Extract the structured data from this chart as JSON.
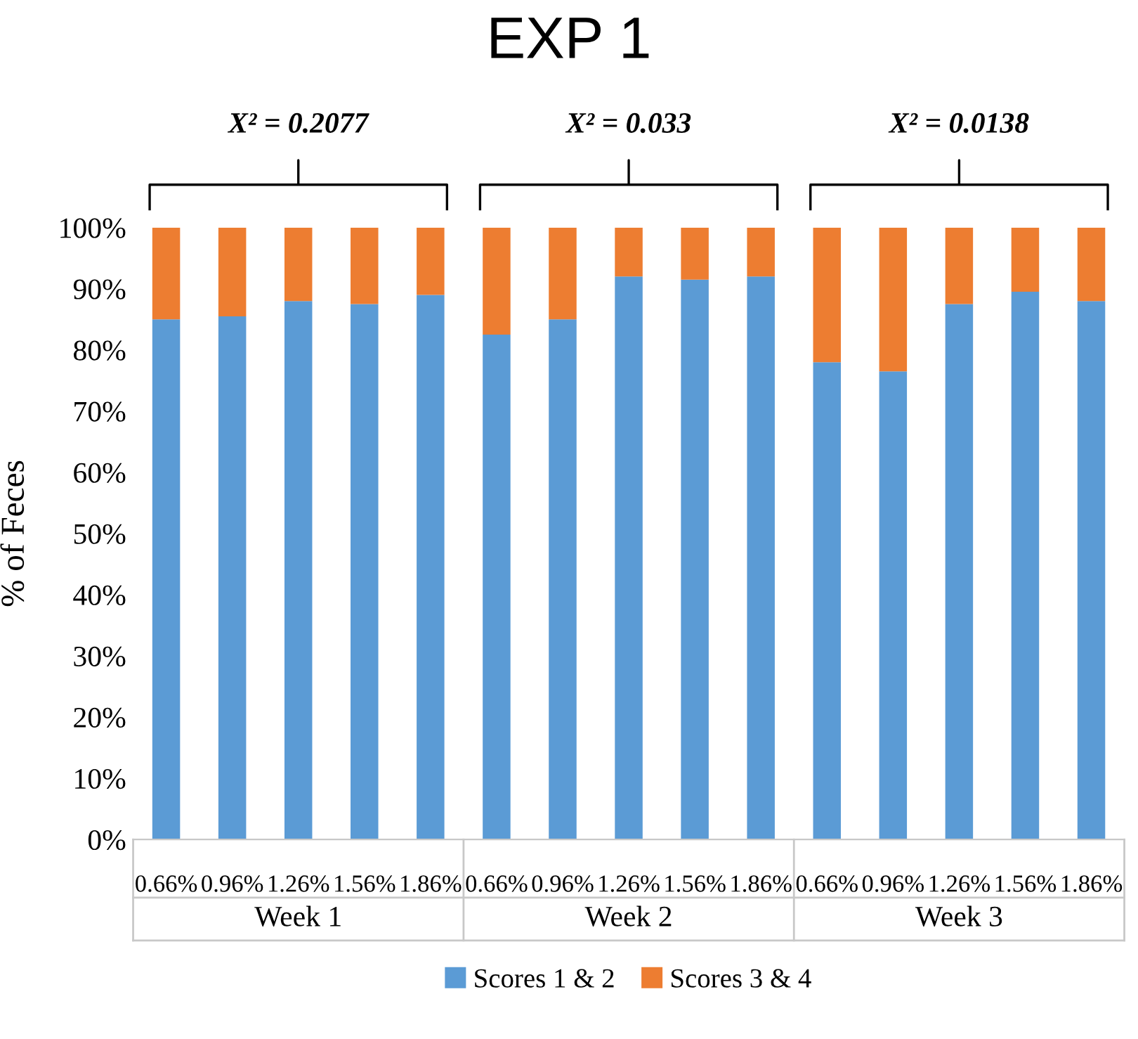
{
  "chart_data": {
    "type": "bar",
    "title": "EXP 1",
    "ylabel": "% of Feces",
    "stacked": true,
    "categories": [
      "0.66%",
      "0.96%",
      "1.26%",
      "1.56%",
      "1.86%",
      "0.66%",
      "0.96%",
      "1.26%",
      "1.56%",
      "1.86%",
      "0.66%",
      "0.96%",
      "1.26%",
      "1.56%",
      "1.86%"
    ],
    "series": [
      {
        "name": "Scores 1 & 2",
        "color": "#5b9bd5",
        "values": [
          85,
          85.5,
          88,
          87.5,
          89,
          82.5,
          85,
          92,
          91.5,
          92,
          78,
          76.5,
          87.5,
          89.5,
          88
        ]
      },
      {
        "name": "Scores 3 & 4",
        "color": "#ed7d31",
        "values": [
          15,
          14.5,
          12,
          12.5,
          11,
          17.5,
          15,
          8,
          8.5,
          8,
          22,
          23.5,
          12.5,
          10.5,
          12
        ]
      }
    ],
    "ylim": [
      0,
      100
    ],
    "yticks": [
      {
        "value": 0,
        "label": "0%"
      },
      {
        "value": 10,
        "label": "10%"
      },
      {
        "value": 20,
        "label": "20%"
      },
      {
        "value": 30,
        "label": "30%"
      },
      {
        "value": 40,
        "label": "40%"
      },
      {
        "value": 50,
        "label": "50%"
      },
      {
        "value": 60,
        "label": "60%"
      },
      {
        "value": 70,
        "label": "70%"
      },
      {
        "value": 80,
        "label": "80%"
      },
      {
        "value": 90,
        "label": "90%"
      },
      {
        "value": 100,
        "label": "100%"
      }
    ],
    "annotations": [
      "X² = 0.2077",
      "X² = 0.033",
      "X² = 0.0138",
      "Week 1",
      "Week 2",
      "Week 3"
    ],
    "grid": false,
    "legend": "bottom"
  }
}
